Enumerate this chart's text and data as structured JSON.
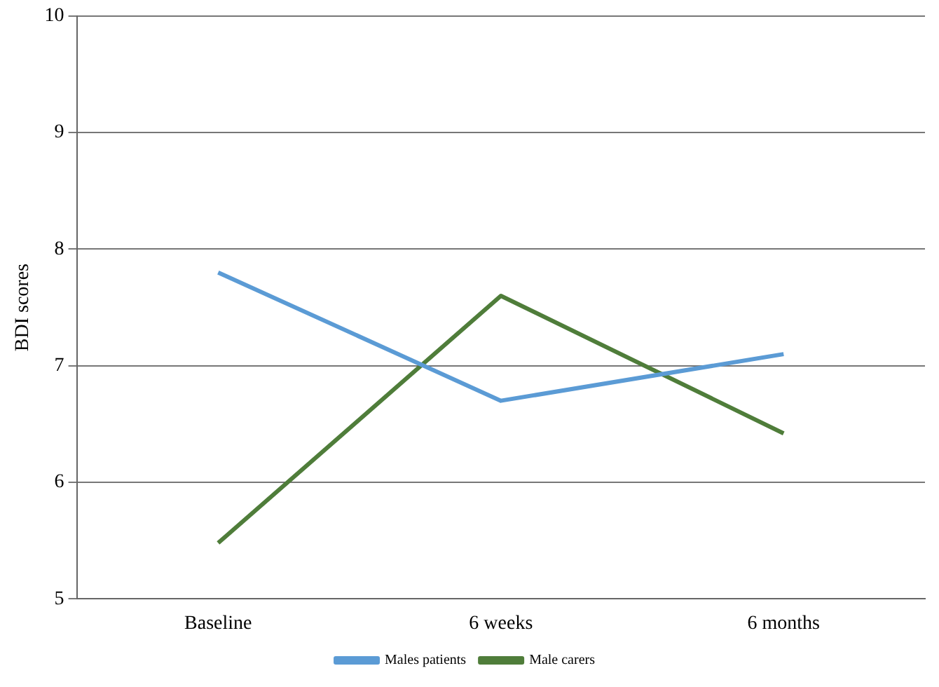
{
  "chart_data": {
    "type": "line",
    "ylabel": "BDI scores",
    "categories": [
      "Baseline",
      "6 weeks",
      "6 months"
    ],
    "series": [
      {
        "name": "Males patients",
        "color": "#5b9bd5",
        "values": [
          7.8,
          6.7,
          7.1
        ]
      },
      {
        "name": "Male carers",
        "color": "#4f7d3a",
        "values": [
          5.48,
          7.6,
          6.42
        ]
      }
    ],
    "ylim": [
      5,
      10
    ],
    "yticks": [
      5,
      6,
      7,
      8,
      9,
      10
    ],
    "grid": "y",
    "legend": "bottom",
    "marker": "none",
    "line_style": "solid"
  }
}
